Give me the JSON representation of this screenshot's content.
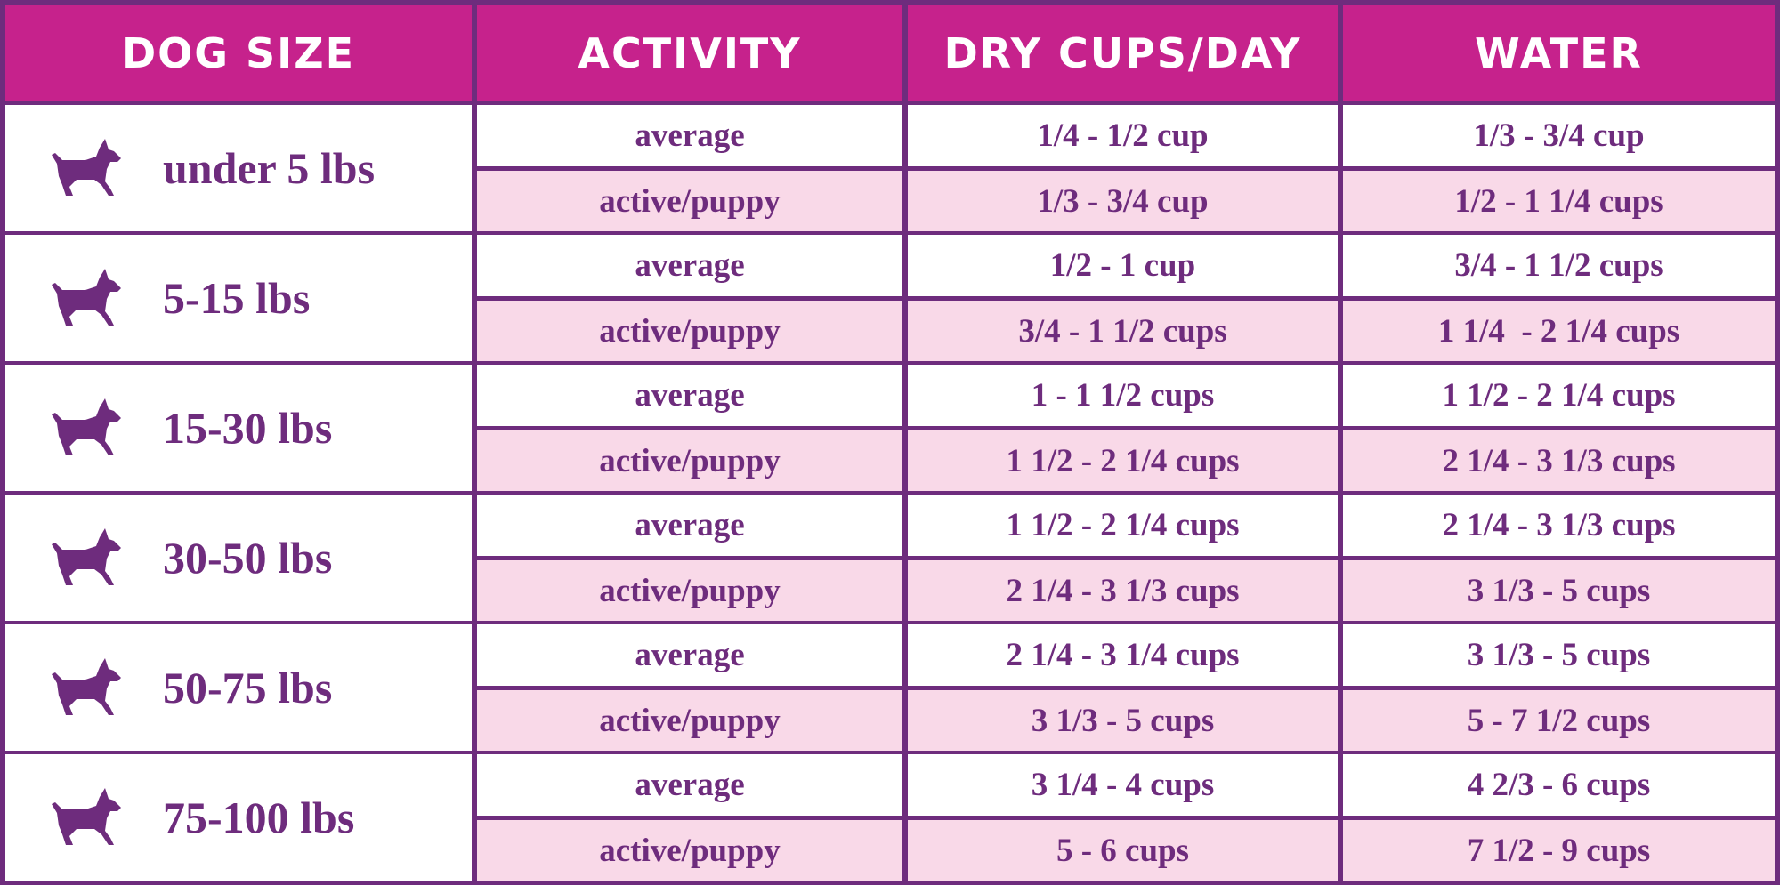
{
  "table": {
    "header": [
      "DOG SIZE",
      "ACTIVITY",
      "DRY CUPS/DAY",
      "WATER"
    ],
    "rows": [
      {
        "size": "under 5 lbs",
        "levels": [
          {
            "activity": "average",
            "dry": "1/4 - 1/2 cup",
            "water": "1/3 - 3/4 cup"
          },
          {
            "activity": "active/puppy",
            "dry": "1/3 - 3/4 cup",
            "water": "1/2 - 1 1/4 cups"
          }
        ]
      },
      {
        "size": "5-15 lbs",
        "levels": [
          {
            "activity": "average",
            "dry": "1/2 - 1 cup",
            "water": "3/4 - 1 1/2 cups"
          },
          {
            "activity": "active/puppy",
            "dry": "3/4 - 1 1/2 cups",
            "water": "1 1/4  - 2 1/4 cups"
          }
        ]
      },
      {
        "size": "15-30 lbs",
        "levels": [
          {
            "activity": "average",
            "dry": "1 - 1 1/2 cups",
            "water": "1 1/2 - 2 1/4 cups"
          },
          {
            "activity": "active/puppy",
            "dry": "1 1/2 - 2 1/4 cups",
            "water": "2 1/4 - 3 1/3 cups"
          }
        ]
      },
      {
        "size": "30-50 lbs",
        "levels": [
          {
            "activity": "average",
            "dry": "1 1/2 - 2 1/4 cups",
            "water": "2 1/4 - 3 1/3 cups"
          },
          {
            "activity": "active/puppy",
            "dry": "2 1/4 - 3 1/3 cups",
            "water": "3 1/3 - 5 cups"
          }
        ]
      },
      {
        "size": "50-75 lbs",
        "levels": [
          {
            "activity": "average",
            "dry": "2 1/4 - 3 1/4 cups",
            "water": "3 1/3 - 5 cups"
          },
          {
            "activity": "active/puppy",
            "dry": "3 1/3 - 5 cups",
            "water": "5 - 7 1/2 cups"
          }
        ]
      },
      {
        "size": "75-100 lbs",
        "levels": [
          {
            "activity": "average",
            "dry": "3 1/4 - 4 cups",
            "water": "4 2/3 - 6 cups"
          },
          {
            "activity": "active/puppy",
            "dry": "5 - 6 cups",
            "water": "7 1/2 - 9 cups"
          }
        ]
      }
    ]
  }
}
